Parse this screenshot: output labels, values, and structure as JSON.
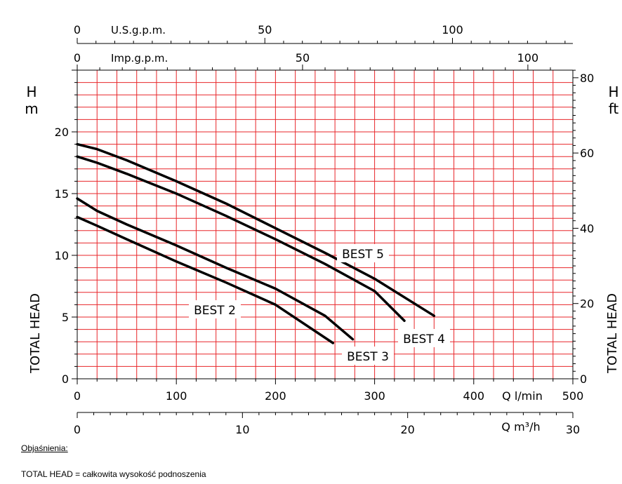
{
  "chart_data": {
    "type": "line",
    "xlabel": "Q  l/min",
    "x_range": [
      0,
      500
    ],
    "x_ticks": [
      "0",
      "100",
      "200",
      "300",
      "400",
      "500"
    ],
    "ylabel": "TOTAL HEAD",
    "y_unit": "H m",
    "y_range": [
      0,
      25
    ],
    "y_ticks": [
      "0",
      "5",
      "10",
      "15",
      "20"
    ],
    "right_axis": {
      "label": "TOTAL HEAD",
      "unit": "H ft",
      "range": [
        0,
        82
      ],
      "ticks": [
        "0",
        "20",
        "40",
        "60",
        "80"
      ]
    },
    "secondary_x_axes": [
      {
        "label": "U.S.g.p.m.",
        "zero": "0",
        "ticks": [
          "50",
          "100"
        ],
        "values": [
          50,
          100
        ]
      },
      {
        "label": "Imp.g.p.m.",
        "zero": "0",
        "ticks": [
          "50",
          "100"
        ],
        "values": [
          50,
          100
        ]
      },
      {
        "label": "Q  m³/h",
        "zero": "0",
        "ticks": [
          "10",
          "20",
          "30"
        ],
        "values": [
          10,
          20,
          30
        ]
      }
    ],
    "grid": true,
    "series": [
      {
        "name": "BEST 2",
        "x": [
          0,
          20,
          50,
          100,
          150,
          200,
          258
        ],
        "y": [
          13.1,
          12.4,
          11.3,
          9.5,
          7.8,
          6.0,
          2.9
        ]
      },
      {
        "name": "BEST 3",
        "x": [
          0,
          20,
          50,
          100,
          150,
          200,
          250,
          278
        ],
        "y": [
          14.6,
          13.6,
          12.5,
          10.8,
          9.0,
          7.3,
          5.1,
          3.2
        ]
      },
      {
        "name": "BEST 4",
        "x": [
          0,
          20,
          50,
          100,
          150,
          200,
          250,
          300,
          330
        ],
        "y": [
          18.0,
          17.5,
          16.6,
          15.0,
          13.2,
          11.3,
          9.3,
          7.1,
          4.7
        ]
      },
      {
        "name": "BEST 5",
        "x": [
          0,
          20,
          50,
          100,
          150,
          200,
          250,
          300,
          360
        ],
        "y": [
          19.0,
          18.6,
          17.7,
          16.0,
          14.2,
          12.2,
          10.2,
          8.1,
          5.1
        ]
      }
    ]
  },
  "legend_note": {
    "title": "Objaśnienia:",
    "text": "TOTAL HEAD = całkowita wysokość podnoszenia"
  }
}
